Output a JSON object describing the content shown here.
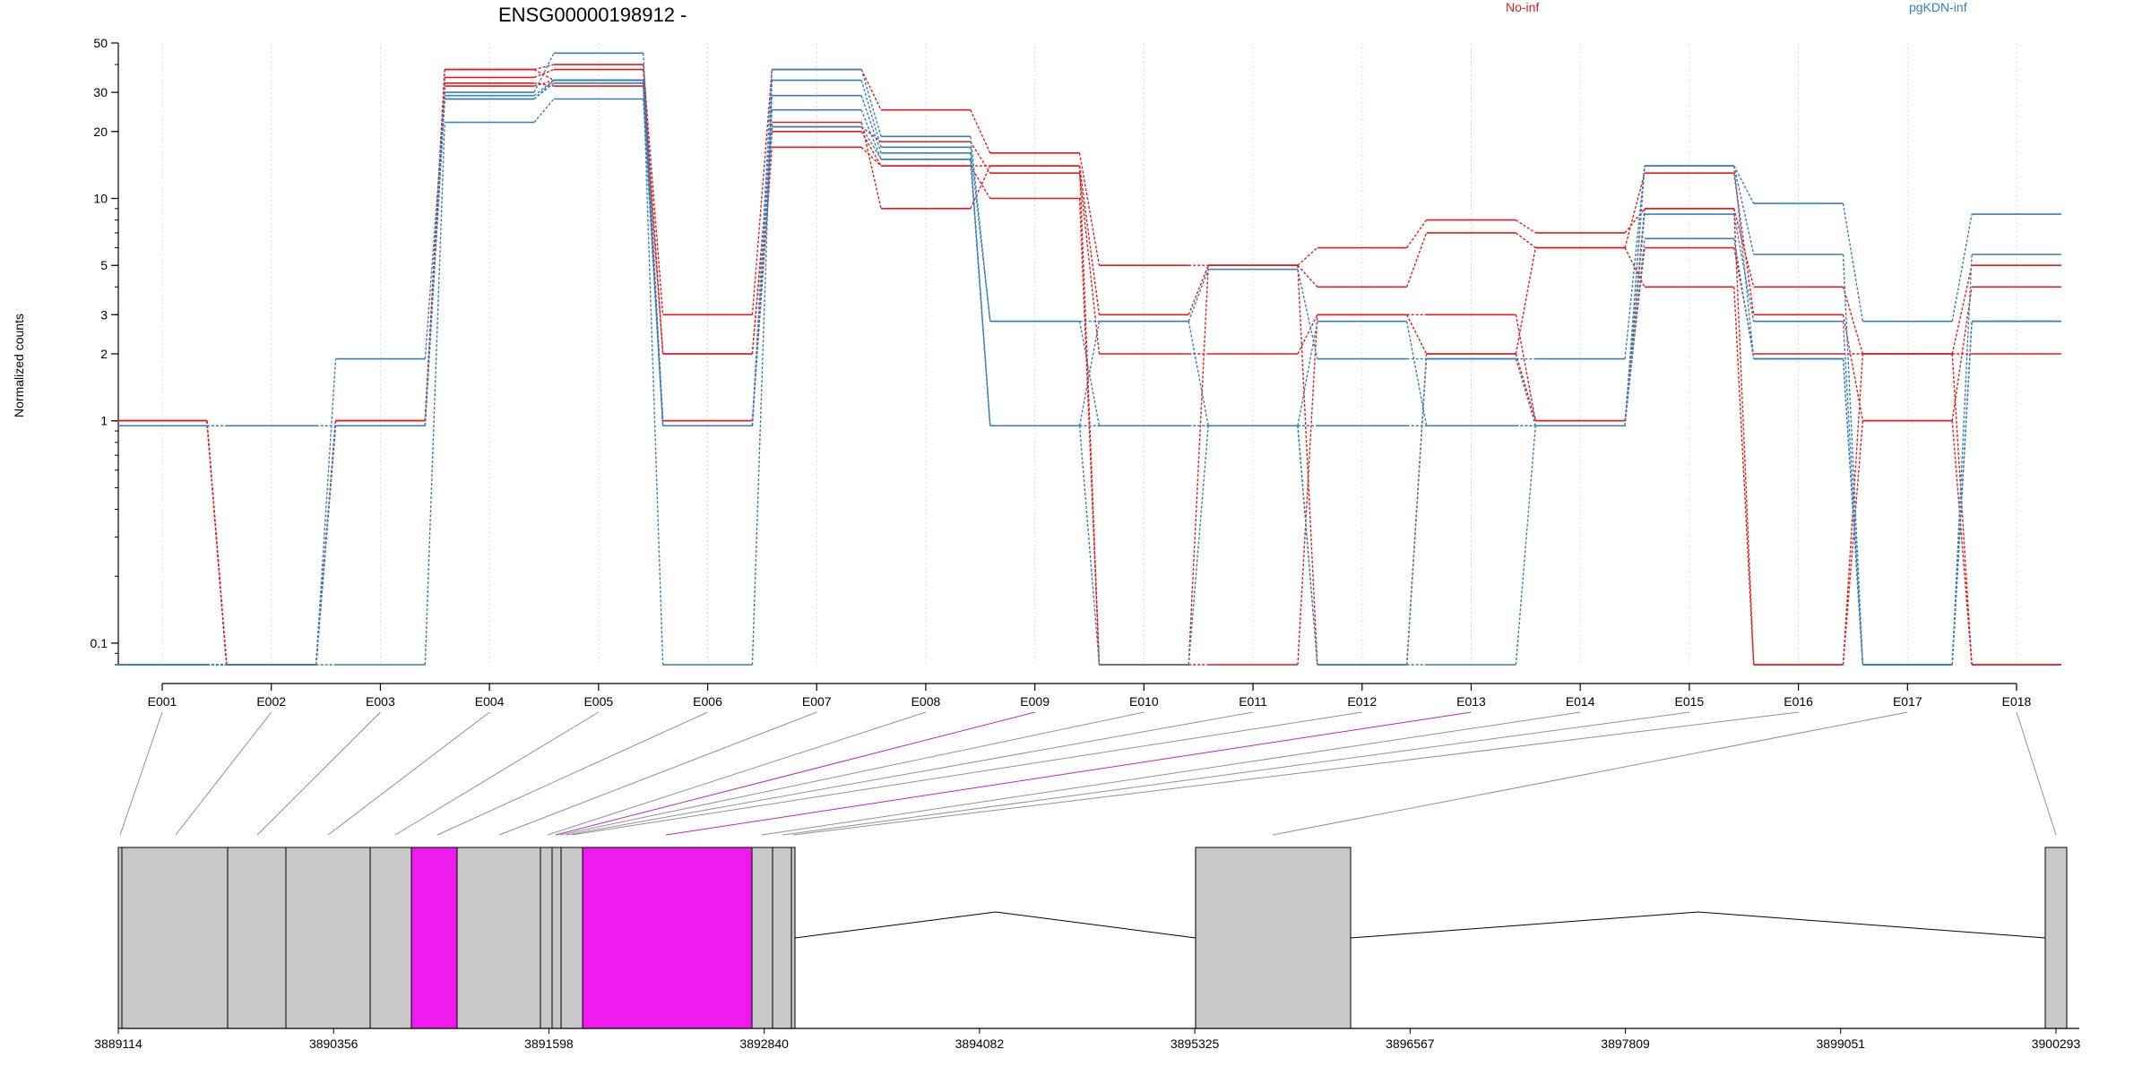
{
  "chart_data": {
    "type": "line",
    "title": "ENSG00000198912 -",
    "xlabel": "",
    "ylabel": "Normalized counts",
    "yscale": "log",
    "ylim": [
      0.08,
      50
    ],
    "yticks": [
      0.1,
      1,
      2,
      3,
      5,
      10,
      20,
      30,
      50
    ],
    "ytick_labels": [
      "0.1",
      "1",
      "2",
      "3",
      "5",
      "10",
      "20",
      "30",
      "50"
    ],
    "grid": true,
    "legend": [
      {
        "name": "No-inf",
        "color": "#e41a1c"
      },
      {
        "name": "pgKDN-inf",
        "color": "#377eb8"
      }
    ],
    "categories": [
      "E001",
      "E002",
      "E003",
      "E004",
      "E005",
      "E006",
      "E007",
      "E008",
      "E009",
      "E010",
      "E011",
      "E012",
      "E013",
      "E014",
      "E015",
      "E016",
      "E017",
      "E018"
    ],
    "series": [
      {
        "group": "No-inf",
        "values": [
          1.0,
          0.08,
          1.0,
          38,
          40,
          3.0,
          38,
          25,
          16,
          5.0,
          5.0,
          6.0,
          8.0,
          7.0,
          9.0,
          4.0,
          2.0,
          5.0
        ]
      },
      {
        "group": "No-inf",
        "values": [
          1.0,
          0.08,
          1.0,
          35,
          38,
          2.0,
          22,
          9,
          14,
          3.0,
          5.0,
          4.0,
          7.0,
          6.0,
          13,
          3.0,
          1.0,
          4.0
        ]
      },
      {
        "group": "No-inf",
        "values": [
          1.0,
          0.08,
          1.0,
          33,
          32,
          2.0,
          21,
          18,
          13,
          2.0,
          2.0,
          3.0,
          3.0,
          1.0,
          6.0,
          2.0,
          2.0,
          2.0
        ]
      },
      {
        "group": "No-inf",
        "values": [
          1.0,
          0.08,
          1.0,
          38,
          34,
          1.0,
          20,
          14,
          10,
          0.08,
          0.08,
          3.0,
          2.0,
          6.0,
          4.0,
          0.08,
          2.0,
          0.08
        ]
      },
      {
        "group": "No-inf",
        "values": [
          1.0,
          0.08,
          1.0,
          32,
          34,
          1.0,
          17,
          14,
          14,
          0.08,
          5.0,
          0.08,
          2.0,
          1.0,
          9.0,
          0.08,
          1.0,
          0.08
        ]
      },
      {
        "group": "pgKDN-inf",
        "values": [
          0.95,
          0.95,
          0.95,
          30,
          45,
          0.95,
          38,
          19,
          2.8,
          2.8,
          4.8,
          1.9,
          1.9,
          1.9,
          14,
          9.5,
          2.8,
          8.5
        ]
      },
      {
        "group": "pgKDN-inf",
        "values": [
          0.08,
          0.08,
          1.9,
          29,
          34,
          0.08,
          34,
          17,
          2.8,
          0.95,
          0.95,
          2.8,
          0.95,
          0.95,
          14,
          5.6,
          0.08,
          5.6
        ]
      },
      {
        "group": "pgKDN-inf",
        "values": [
          0.08,
          0.08,
          0.95,
          28,
          33,
          0.95,
          29,
          16,
          0.95,
          0.95,
          0.95,
          0.95,
          0.95,
          0.95,
          8.5,
          2.8,
          0.08,
          2.8
        ]
      },
      {
        "group": "pgKDN-inf",
        "values": [
          0.08,
          0.08,
          0.08,
          22,
          28,
          0.95,
          25,
          15,
          0.95,
          0.08,
          0.95,
          0.08,
          0.08,
          0.95,
          14,
          1.9,
          0.08,
          2.8
        ]
      },
      {
        "group": "pgKDN-inf",
        "values": [
          0.08,
          0.08,
          0.95,
          28,
          34,
          0.95,
          21,
          15,
          0.95,
          2.8,
          0.95,
          0.08,
          1.9,
          0.95,
          6.6,
          1.9,
          0.08,
          2.8
        ]
      }
    ],
    "gene_model": {
      "coordinate_ticks": [
        "3889114",
        "3890356",
        "3891598",
        "3892840",
        "3894082",
        "3895325",
        "3896567",
        "3897809",
        "3899051",
        "3900293"
      ],
      "highlight_color": "#ee1aee",
      "exon_color": "#c8c8c8",
      "highlighted_exons": [
        "E009",
        "E013"
      ]
    }
  }
}
